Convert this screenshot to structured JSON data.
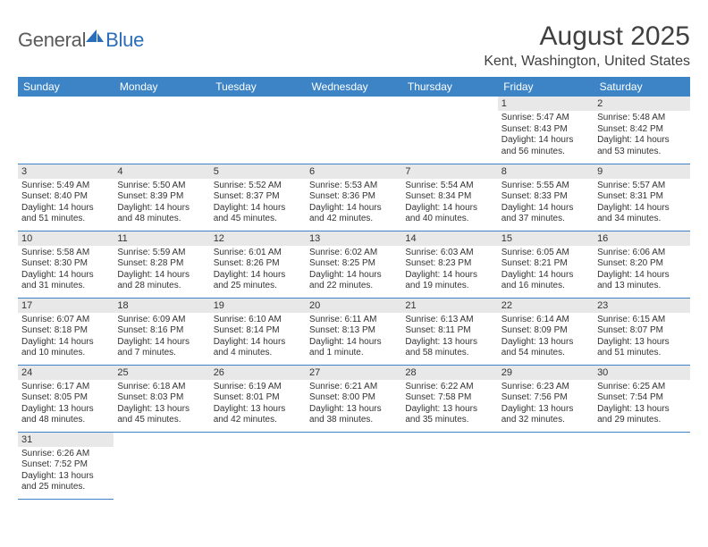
{
  "logo": {
    "part1": "General",
    "part2": "Blue"
  },
  "title": "August 2025",
  "location": "Kent, Washington, United States",
  "colors": {
    "header_bg": "#3c84c6",
    "daynum_bg": "#e8e8e8",
    "border": "#3c84c6",
    "text": "#333333"
  },
  "weekdays": [
    "Sunday",
    "Monday",
    "Tuesday",
    "Wednesday",
    "Thursday",
    "Friday",
    "Saturday"
  ],
  "weeks": [
    [
      null,
      null,
      null,
      null,
      null,
      {
        "d": "1",
        "sr": "Sunrise: 5:47 AM",
        "ss": "Sunset: 8:43 PM",
        "dl1": "Daylight: 14 hours",
        "dl2": "and 56 minutes."
      },
      {
        "d": "2",
        "sr": "Sunrise: 5:48 AM",
        "ss": "Sunset: 8:42 PM",
        "dl1": "Daylight: 14 hours",
        "dl2": "and 53 minutes."
      }
    ],
    [
      {
        "d": "3",
        "sr": "Sunrise: 5:49 AM",
        "ss": "Sunset: 8:40 PM",
        "dl1": "Daylight: 14 hours",
        "dl2": "and 51 minutes."
      },
      {
        "d": "4",
        "sr": "Sunrise: 5:50 AM",
        "ss": "Sunset: 8:39 PM",
        "dl1": "Daylight: 14 hours",
        "dl2": "and 48 minutes."
      },
      {
        "d": "5",
        "sr": "Sunrise: 5:52 AM",
        "ss": "Sunset: 8:37 PM",
        "dl1": "Daylight: 14 hours",
        "dl2": "and 45 minutes."
      },
      {
        "d": "6",
        "sr": "Sunrise: 5:53 AM",
        "ss": "Sunset: 8:36 PM",
        "dl1": "Daylight: 14 hours",
        "dl2": "and 42 minutes."
      },
      {
        "d": "7",
        "sr": "Sunrise: 5:54 AM",
        "ss": "Sunset: 8:34 PM",
        "dl1": "Daylight: 14 hours",
        "dl2": "and 40 minutes."
      },
      {
        "d": "8",
        "sr": "Sunrise: 5:55 AM",
        "ss": "Sunset: 8:33 PM",
        "dl1": "Daylight: 14 hours",
        "dl2": "and 37 minutes."
      },
      {
        "d": "9",
        "sr": "Sunrise: 5:57 AM",
        "ss": "Sunset: 8:31 PM",
        "dl1": "Daylight: 14 hours",
        "dl2": "and 34 minutes."
      }
    ],
    [
      {
        "d": "10",
        "sr": "Sunrise: 5:58 AM",
        "ss": "Sunset: 8:30 PM",
        "dl1": "Daylight: 14 hours",
        "dl2": "and 31 minutes."
      },
      {
        "d": "11",
        "sr": "Sunrise: 5:59 AM",
        "ss": "Sunset: 8:28 PM",
        "dl1": "Daylight: 14 hours",
        "dl2": "and 28 minutes."
      },
      {
        "d": "12",
        "sr": "Sunrise: 6:01 AM",
        "ss": "Sunset: 8:26 PM",
        "dl1": "Daylight: 14 hours",
        "dl2": "and 25 minutes."
      },
      {
        "d": "13",
        "sr": "Sunrise: 6:02 AM",
        "ss": "Sunset: 8:25 PM",
        "dl1": "Daylight: 14 hours",
        "dl2": "and 22 minutes."
      },
      {
        "d": "14",
        "sr": "Sunrise: 6:03 AM",
        "ss": "Sunset: 8:23 PM",
        "dl1": "Daylight: 14 hours",
        "dl2": "and 19 minutes."
      },
      {
        "d": "15",
        "sr": "Sunrise: 6:05 AM",
        "ss": "Sunset: 8:21 PM",
        "dl1": "Daylight: 14 hours",
        "dl2": "and 16 minutes."
      },
      {
        "d": "16",
        "sr": "Sunrise: 6:06 AM",
        "ss": "Sunset: 8:20 PM",
        "dl1": "Daylight: 14 hours",
        "dl2": "and 13 minutes."
      }
    ],
    [
      {
        "d": "17",
        "sr": "Sunrise: 6:07 AM",
        "ss": "Sunset: 8:18 PM",
        "dl1": "Daylight: 14 hours",
        "dl2": "and 10 minutes."
      },
      {
        "d": "18",
        "sr": "Sunrise: 6:09 AM",
        "ss": "Sunset: 8:16 PM",
        "dl1": "Daylight: 14 hours",
        "dl2": "and 7 minutes."
      },
      {
        "d": "19",
        "sr": "Sunrise: 6:10 AM",
        "ss": "Sunset: 8:14 PM",
        "dl1": "Daylight: 14 hours",
        "dl2": "and 4 minutes."
      },
      {
        "d": "20",
        "sr": "Sunrise: 6:11 AM",
        "ss": "Sunset: 8:13 PM",
        "dl1": "Daylight: 14 hours",
        "dl2": "and 1 minute."
      },
      {
        "d": "21",
        "sr": "Sunrise: 6:13 AM",
        "ss": "Sunset: 8:11 PM",
        "dl1": "Daylight: 13 hours",
        "dl2": "and 58 minutes."
      },
      {
        "d": "22",
        "sr": "Sunrise: 6:14 AM",
        "ss": "Sunset: 8:09 PM",
        "dl1": "Daylight: 13 hours",
        "dl2": "and 54 minutes."
      },
      {
        "d": "23",
        "sr": "Sunrise: 6:15 AM",
        "ss": "Sunset: 8:07 PM",
        "dl1": "Daylight: 13 hours",
        "dl2": "and 51 minutes."
      }
    ],
    [
      {
        "d": "24",
        "sr": "Sunrise: 6:17 AM",
        "ss": "Sunset: 8:05 PM",
        "dl1": "Daylight: 13 hours",
        "dl2": "and 48 minutes."
      },
      {
        "d": "25",
        "sr": "Sunrise: 6:18 AM",
        "ss": "Sunset: 8:03 PM",
        "dl1": "Daylight: 13 hours",
        "dl2": "and 45 minutes."
      },
      {
        "d": "26",
        "sr": "Sunrise: 6:19 AM",
        "ss": "Sunset: 8:01 PM",
        "dl1": "Daylight: 13 hours",
        "dl2": "and 42 minutes."
      },
      {
        "d": "27",
        "sr": "Sunrise: 6:21 AM",
        "ss": "Sunset: 8:00 PM",
        "dl1": "Daylight: 13 hours",
        "dl2": "and 38 minutes."
      },
      {
        "d": "28",
        "sr": "Sunrise: 6:22 AM",
        "ss": "Sunset: 7:58 PM",
        "dl1": "Daylight: 13 hours",
        "dl2": "and 35 minutes."
      },
      {
        "d": "29",
        "sr": "Sunrise: 6:23 AM",
        "ss": "Sunset: 7:56 PM",
        "dl1": "Daylight: 13 hours",
        "dl2": "and 32 minutes."
      },
      {
        "d": "30",
        "sr": "Sunrise: 6:25 AM",
        "ss": "Sunset: 7:54 PM",
        "dl1": "Daylight: 13 hours",
        "dl2": "and 29 minutes."
      }
    ],
    [
      {
        "d": "31",
        "sr": "Sunrise: 6:26 AM",
        "ss": "Sunset: 7:52 PM",
        "dl1": "Daylight: 13 hours",
        "dl2": "and 25 minutes."
      },
      null,
      null,
      null,
      null,
      null,
      null
    ]
  ]
}
